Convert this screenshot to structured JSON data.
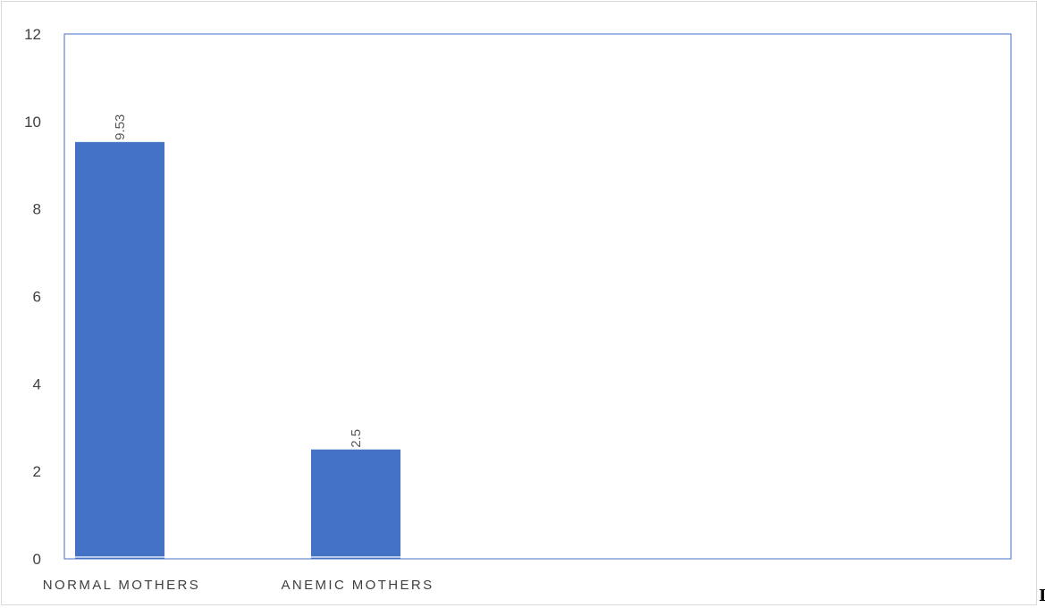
{
  "chart_data": {
    "type": "bar",
    "title": "",
    "xlabel": "",
    "ylabel": "",
    "categories": [
      "NORMAL MOTHERS",
      "ANEMIC MOTHERS"
    ],
    "values": [
      9.53,
      2.5
    ],
    "data_labels": [
      "9.53",
      "2.5"
    ],
    "ylim": [
      0,
      12
    ],
    "y_ticks": [
      "0",
      "2",
      "4",
      "6",
      "8",
      "10",
      "12"
    ],
    "grid": false,
    "legend": "none",
    "bar_color": "#4472C4",
    "plot_border_color": "#4472C4",
    "outer_border_color": "#D9D9D9"
  },
  "edge_mark": "I"
}
